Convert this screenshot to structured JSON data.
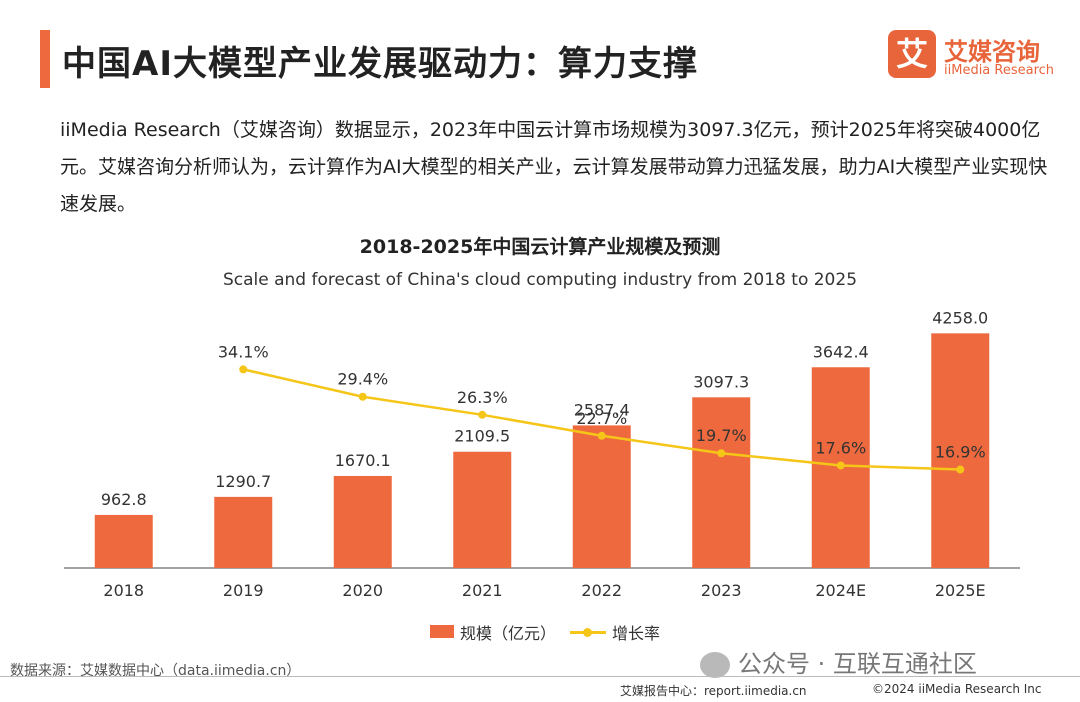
{
  "header": {
    "title": "中国AI大模型产业发展驱动力：算力支撑",
    "logo_mark": "艾",
    "logo_cn": "艾媒咨询",
    "logo_en": "iiMedia Research"
  },
  "intro": "iiMedia Research（艾媒咨询）数据显示，2023年中国云计算市场规模为3097.3亿元，预计2025年将突破4000亿元。艾媒咨询分析师认为，云计算作为AI大模型的相关产业，云计算发展带动算力迅猛发展，助力AI大模型产业实现快速发展。",
  "chart_data": {
    "type": "bar",
    "title": "2018-2025年中国云计算产业规模及预测",
    "subtitle": "Scale and forecast of China's cloud computing industry from 2018 to 2025",
    "categories": [
      "2018",
      "2019",
      "2020",
      "2021",
      "2022",
      "2023",
      "2024E",
      "2025E"
    ],
    "series": [
      {
        "name": "规模（亿元）",
        "kind": "bar",
        "color": "#ee6a3e",
        "values": [
          962.8,
          1290.7,
          1670.1,
          2109.5,
          2587.4,
          3097.3,
          3642.4,
          4258.0
        ],
        "labels": [
          "962.8",
          "1290.7",
          "1670.1",
          "2109.5",
          "2587.4",
          "3097.3",
          "3642.4",
          "4258.0"
        ]
      },
      {
        "name": "增长率",
        "kind": "line",
        "color": "#f5c518",
        "values": [
          null,
          34.1,
          29.4,
          26.3,
          22.7,
          19.7,
          17.6,
          16.9
        ],
        "labels": [
          "",
          "34.1%",
          "29.4%",
          "26.3%",
          "22.7%",
          "19.7%",
          "17.6%",
          "16.9%"
        ]
      }
    ],
    "ylim": [
      0,
      4500
    ],
    "y2lim": [
      0,
      40
    ],
    "grid": false,
    "legend": "bottom"
  },
  "legend": {
    "bar_label": "规模（亿元）",
    "line_label": "增长率"
  },
  "footer": {
    "source": "数据来源：艾媒数据中心（data.iimedia.cn）",
    "watermark": "公众号 · 互联互通社区",
    "left": "艾媒报告中心：report.iimedia.cn",
    "right": "©2024 iiMedia Research Inc"
  }
}
